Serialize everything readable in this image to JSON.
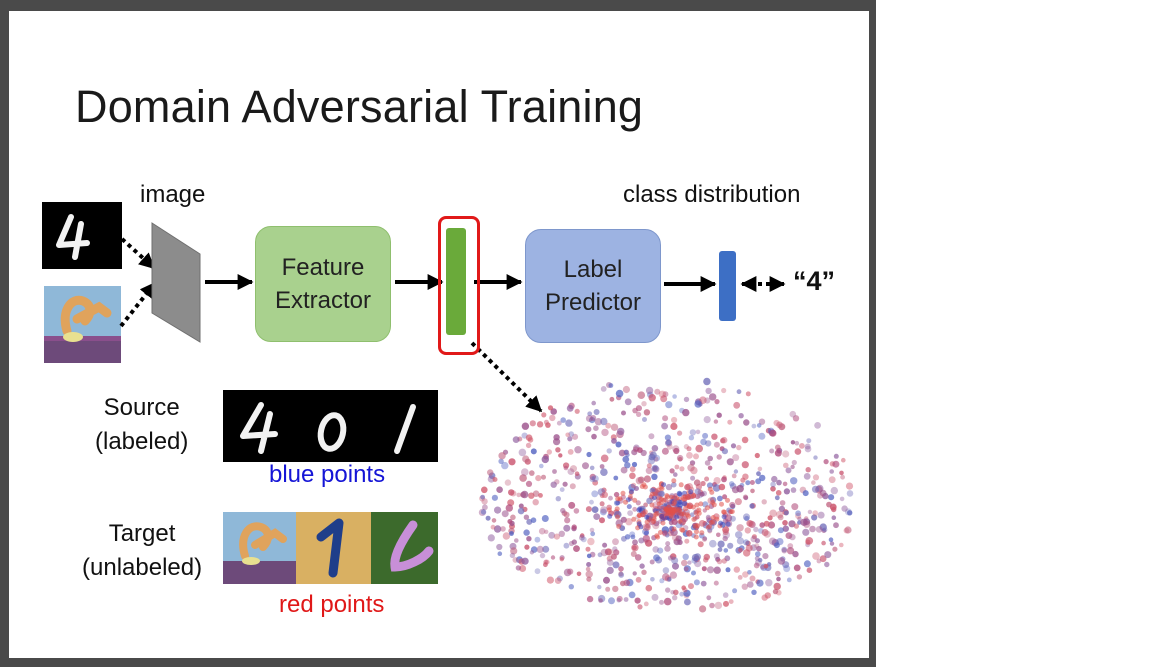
{
  "title": "Domain Adversarial Training",
  "labels": {
    "image": "image",
    "class_distribution": "class distribution",
    "output": "“4”"
  },
  "blocks": {
    "feature_extractor": "Feature\nExtractor",
    "label_predictor": "Label\nPredictor"
  },
  "source": {
    "label": "Source\n(labeled)",
    "digits": [
      "4",
      "0",
      "1"
    ],
    "caption": "blue points"
  },
  "target": {
    "label": "Target\n(unlabeled)",
    "caption": "red points"
  },
  "colors": {
    "feature_box": "#a9d18e",
    "label_box": "#9db3e2",
    "feature_vector": "#6aaa3a",
    "output_vector": "#3d6fc5",
    "highlight": "#e11919",
    "source_points": "#1515d6",
    "target_points": "#e01818"
  }
}
